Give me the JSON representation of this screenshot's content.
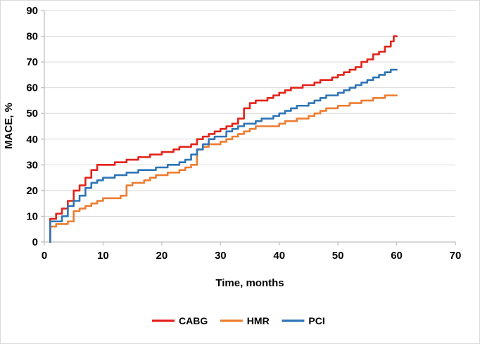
{
  "chart_data": {
    "type": "line",
    "step": true,
    "title": "",
    "xlabel": "Time, months",
    "ylabel": "MACE, %",
    "xlim": [
      0,
      70
    ],
    "ylim": [
      0,
      90
    ],
    "xticks": [
      0,
      10,
      20,
      30,
      40,
      50,
      60,
      70
    ],
    "yticks": [
      0,
      10,
      20,
      30,
      40,
      50,
      60,
      70,
      80,
      90
    ],
    "grid": "horizontal",
    "grid_color": "#d9d9d9",
    "axis_color": "#bfbfbf",
    "legend_position": "bottom",
    "series": [
      {
        "name": "CABG",
        "color": "#e2231a",
        "points": [
          [
            1,
            0
          ],
          [
            1,
            9
          ],
          [
            2,
            11
          ],
          [
            3,
            13
          ],
          [
            4,
            16
          ],
          [
            5,
            20
          ],
          [
            6,
            22
          ],
          [
            7,
            25
          ],
          [
            8,
            28
          ],
          [
            9,
            30
          ],
          [
            12,
            31
          ],
          [
            14,
            32
          ],
          [
            16,
            33
          ],
          [
            18,
            34
          ],
          [
            20,
            35
          ],
          [
            22,
            36
          ],
          [
            23,
            37
          ],
          [
            25,
            38
          ],
          [
            26,
            40
          ],
          [
            27,
            41
          ],
          [
            28,
            42
          ],
          [
            29,
            43
          ],
          [
            30,
            44
          ],
          [
            31,
            45
          ],
          [
            32,
            46
          ],
          [
            33,
            48
          ],
          [
            34,
            52
          ],
          [
            35,
            54
          ],
          [
            36,
            55
          ],
          [
            38,
            56
          ],
          [
            39,
            57
          ],
          [
            40,
            58
          ],
          [
            41,
            59
          ],
          [
            42,
            60
          ],
          [
            44,
            61
          ],
          [
            46,
            62
          ],
          [
            47,
            63
          ],
          [
            49,
            64
          ],
          [
            50,
            65
          ],
          [
            51,
            66
          ],
          [
            52,
            67
          ],
          [
            53,
            68
          ],
          [
            54,
            70
          ],
          [
            55,
            71
          ],
          [
            56,
            73
          ],
          [
            57,
            74
          ],
          [
            58,
            76
          ],
          [
            59,
            78
          ],
          [
            59.5,
            80
          ],
          [
            60,
            80
          ]
        ]
      },
      {
        "name": "HMR",
        "color": "#ed7d31",
        "points": [
          [
            1,
            0
          ],
          [
            1,
            6
          ],
          [
            2,
            7
          ],
          [
            4,
            8
          ],
          [
            5,
            12
          ],
          [
            6,
            13
          ],
          [
            7,
            14
          ],
          [
            8,
            15
          ],
          [
            9,
            16
          ],
          [
            10,
            17
          ],
          [
            13,
            18
          ],
          [
            14,
            22
          ],
          [
            15,
            23
          ],
          [
            17,
            24
          ],
          [
            18,
            25
          ],
          [
            19,
            26
          ],
          [
            21,
            27
          ],
          [
            23,
            28
          ],
          [
            24,
            29
          ],
          [
            25,
            30
          ],
          [
            26,
            36
          ],
          [
            27,
            37
          ],
          [
            28,
            38
          ],
          [
            30,
            39
          ],
          [
            31,
            40
          ],
          [
            32,
            41
          ],
          [
            33,
            42
          ],
          [
            34,
            43
          ],
          [
            35,
            44
          ],
          [
            36,
            45
          ],
          [
            40,
            46
          ],
          [
            41,
            47
          ],
          [
            43,
            48
          ],
          [
            45,
            49
          ],
          [
            46,
            50
          ],
          [
            47,
            51
          ],
          [
            48,
            52
          ],
          [
            50,
            53
          ],
          [
            52,
            54
          ],
          [
            54,
            55
          ],
          [
            56,
            56
          ],
          [
            58,
            57
          ],
          [
            60,
            57
          ]
        ]
      },
      {
        "name": "PCI",
        "color": "#2e75b6",
        "points": [
          [
            1,
            0
          ],
          [
            1,
            8
          ],
          [
            3,
            10
          ],
          [
            4,
            14
          ],
          [
            5,
            16
          ],
          [
            6,
            18
          ],
          [
            7,
            21
          ],
          [
            8,
            23
          ],
          [
            9,
            24
          ],
          [
            10,
            25
          ],
          [
            12,
            26
          ],
          [
            14,
            27
          ],
          [
            16,
            28
          ],
          [
            19,
            29
          ],
          [
            21,
            30
          ],
          [
            23,
            31
          ],
          [
            24,
            32
          ],
          [
            25,
            34
          ],
          [
            26,
            36
          ],
          [
            27,
            38
          ],
          [
            28,
            40
          ],
          [
            29,
            41
          ],
          [
            31,
            43
          ],
          [
            32,
            44
          ],
          [
            33,
            45
          ],
          [
            34,
            46
          ],
          [
            36,
            47
          ],
          [
            37,
            48
          ],
          [
            39,
            49
          ],
          [
            40,
            50
          ],
          [
            41,
            51
          ],
          [
            42,
            52
          ],
          [
            43,
            53
          ],
          [
            45,
            54
          ],
          [
            46,
            55
          ],
          [
            47,
            56
          ],
          [
            48,
            57
          ],
          [
            50,
            58
          ],
          [
            51,
            59
          ],
          [
            52,
            60
          ],
          [
            53,
            61
          ],
          [
            54,
            62
          ],
          [
            55,
            63
          ],
          [
            56,
            64
          ],
          [
            57,
            65
          ],
          [
            58,
            66
          ],
          [
            59,
            67
          ],
          [
            60,
            67
          ]
        ]
      }
    ]
  }
}
